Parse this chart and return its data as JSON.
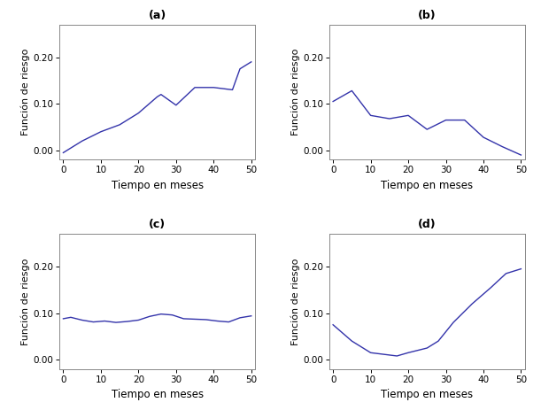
{
  "title_a": "(a)",
  "title_b": "(b)",
  "title_c": "(c)",
  "title_d": "(d)",
  "xlabel": "Tiempo en meses",
  "ylabel": "Función de riesgo",
  "line_color": "#3333aa",
  "line_width": 1.0,
  "bg_color": "#ffffff",
  "plot_bg_color": "#ffffff",
  "xlim": [
    -1,
    51
  ],
  "ylim": [
    -0.02,
    0.27
  ],
  "yticks": [
    0.0,
    0.1,
    0.2
  ],
  "xticks": [
    0,
    10,
    20,
    30,
    40,
    50
  ],
  "x_a": [
    0,
    5,
    10,
    15,
    20,
    25,
    26,
    30,
    35,
    40,
    45,
    47,
    50
  ],
  "y_a": [
    -0.005,
    0.02,
    0.04,
    0.055,
    0.08,
    0.115,
    0.12,
    0.097,
    0.135,
    0.135,
    0.13,
    0.175,
    0.19
  ],
  "x_b": [
    0,
    5,
    10,
    15,
    20,
    25,
    30,
    35,
    40,
    45,
    50
  ],
  "y_b": [
    0.105,
    0.128,
    0.075,
    0.068,
    0.075,
    0.045,
    0.065,
    0.065,
    0.028,
    0.008,
    -0.01
  ],
  "x_c": [
    0,
    2,
    5,
    8,
    11,
    14,
    17,
    20,
    23,
    26,
    29,
    32,
    35,
    38,
    41,
    44,
    47,
    50
  ],
  "y_c": [
    0.088,
    0.091,
    0.085,
    0.081,
    0.083,
    0.08,
    0.082,
    0.085,
    0.093,
    0.098,
    0.096,
    0.088,
    0.087,
    0.086,
    0.083,
    0.081,
    0.09,
    0.094
  ],
  "x_d": [
    0,
    5,
    10,
    15,
    17,
    20,
    25,
    28,
    32,
    37,
    42,
    46,
    50
  ],
  "y_d": [
    0.075,
    0.04,
    0.015,
    0.01,
    0.008,
    0.015,
    0.025,
    0.04,
    0.08,
    0.12,
    0.155,
    0.185,
    0.195
  ]
}
